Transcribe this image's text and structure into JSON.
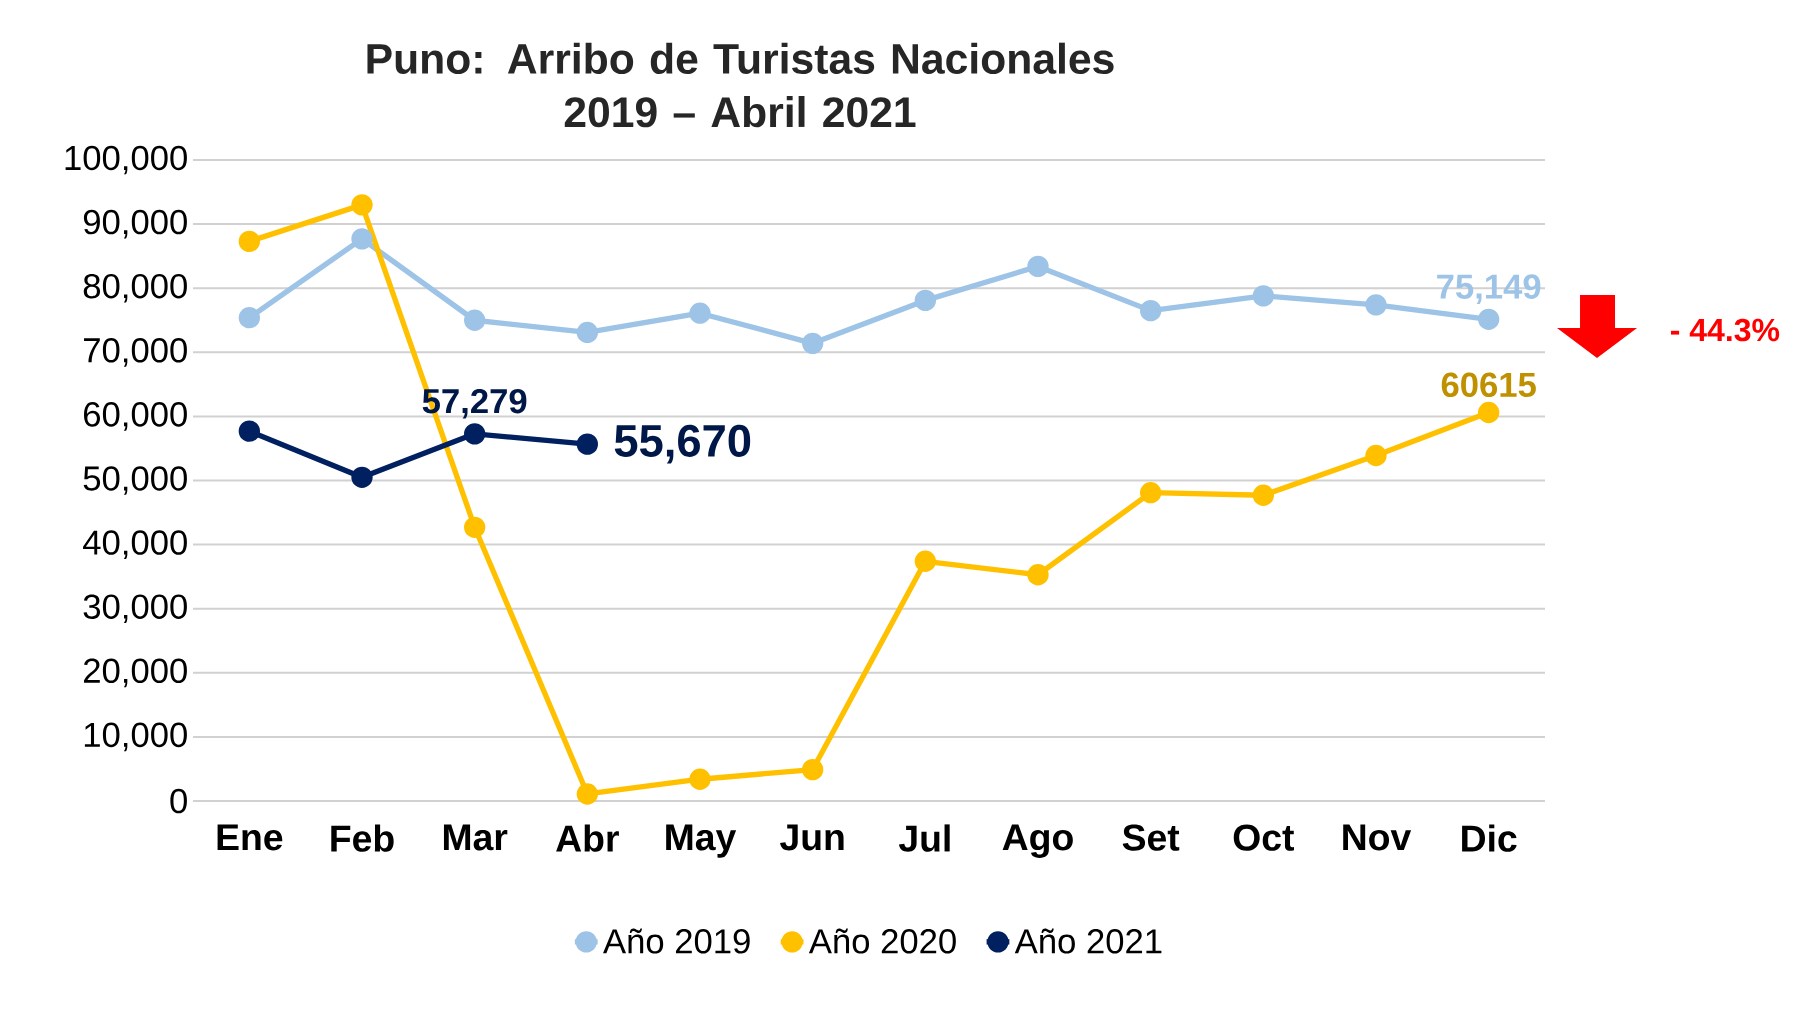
{
  "chart_data": {
    "type": "line",
    "title": "Puno: Arribo de Turistas Nacionales\n2019 – Abril 2021",
    "categories": [
      "Ene",
      "Feb",
      "Mar",
      "Abr",
      "May",
      "Jun",
      "Jul",
      "Ago",
      "Set",
      "Oct",
      "Nov",
      "Dic"
    ],
    "series": [
      {
        "name": "Año 2019",
        "color": "#9dc3e6",
        "values": [
          75400,
          87700,
          75000,
          73100,
          76100,
          71400,
          78100,
          83400,
          76500,
          78800,
          77400,
          75149
        ],
        "value_labels": [
          null,
          null,
          null,
          null,
          null,
          null,
          null,
          null,
          null,
          null,
          null,
          "75,149"
        ]
      },
      {
        "name": "Año 2020",
        "color": "#ffc000",
        "values": [
          87300,
          93000,
          42700,
          1100,
          3400,
          4900,
          37400,
          35300,
          48100,
          47700,
          53900,
          60615
        ],
        "value_labels": [
          null,
          null,
          null,
          null,
          null,
          null,
          null,
          null,
          null,
          null,
          null,
          "60615"
        ]
      },
      {
        "name": "Año 2021",
        "color": "#002060",
        "values": [
          57700,
          50500,
          57279,
          55670,
          null,
          null,
          null,
          null,
          null,
          null,
          null,
          null
        ],
        "value_labels": [
          null,
          null,
          "57,279",
          "55,670",
          null,
          null,
          null,
          null,
          null,
          null,
          null,
          null
        ]
      }
    ],
    "ylim": [
      0,
      100000
    ],
    "yticks": [
      {
        "value": 0,
        "label": "0"
      },
      {
        "value": 10000,
        "label": "10,000"
      },
      {
        "value": 20000,
        "label": "20,000"
      },
      {
        "value": 30000,
        "label": "30,000"
      },
      {
        "value": 40000,
        "label": "40,000"
      },
      {
        "value": 50000,
        "label": "50,000"
      },
      {
        "value": 60000,
        "label": "60,000"
      },
      {
        "value": 70000,
        "label": "70,000"
      },
      {
        "value": 80000,
        "label": "80,000"
      },
      {
        "value": 90000,
        "label": "90,000"
      },
      {
        "value": 100000,
        "label": "100,000"
      }
    ],
    "grid": "y",
    "legend": "bottom",
    "marker": "circle",
    "line_style": "solid",
    "annotations": [
      "- 44.3%"
    ]
  }
}
